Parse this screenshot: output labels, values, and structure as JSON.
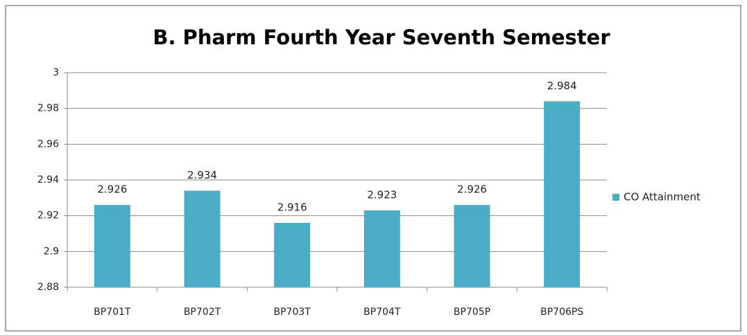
{
  "chart_data": {
    "type": "bar",
    "title": "B. Pharm Fourth Year Seventh Semester",
    "categories": [
      "BP701T",
      "BP702T",
      "BP703T",
      "BP704T",
      "BP705P",
      "BP706PS"
    ],
    "series": [
      {
        "name": "CO Attainment",
        "color": "#4bacc6",
        "values": [
          2.926,
          2.934,
          2.916,
          2.923,
          2.926,
          2.984
        ]
      }
    ],
    "ylim": [
      2.88,
      3
    ],
    "yticks": [
      2.88,
      2.9,
      2.92,
      2.94,
      2.96,
      2.98,
      3
    ],
    "grid": true,
    "legend": "right"
  }
}
